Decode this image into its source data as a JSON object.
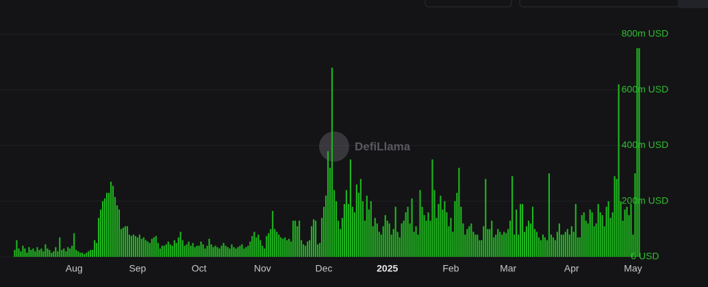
{
  "chart_data": {
    "type": "bar",
    "watermark": "DefiLlama",
    "color": "#1fb51f",
    "grid": true,
    "ylim": [
      0,
      800
    ],
    "yticks": [
      {
        "value": 0,
        "label": "0 USD"
      },
      {
        "value": 200,
        "label": "200m USD"
      },
      {
        "value": 400,
        "label": "400m USD"
      },
      {
        "value": 600,
        "label": "600m USD"
      },
      {
        "value": 800,
        "label": "800m USD"
      }
    ],
    "categories": [
      null,
      null,
      null,
      null,
      null,
      null,
      null,
      null,
      null,
      null,
      null,
      null,
      null,
      null,
      null,
      null,
      null,
      null,
      null,
      null,
      null,
      null,
      null,
      null,
      null,
      null,
      null,
      null,
      null,
      "Aug",
      null,
      null,
      null,
      null,
      null,
      null,
      null,
      null,
      null,
      null,
      null,
      null,
      null,
      null,
      null,
      null,
      null,
      null,
      null,
      null,
      null,
      null,
      null,
      null,
      null,
      null,
      null,
      null,
      null,
      null,
      "Sep",
      null,
      null,
      null,
      null,
      null,
      null,
      null,
      null,
      null,
      null,
      null,
      null,
      null,
      null,
      null,
      null,
      null,
      null,
      null,
      null,
      null,
      null,
      null,
      null,
      null,
      null,
      null,
      null,
      null,
      "Oct",
      null,
      null,
      null,
      null,
      null,
      null,
      null,
      null,
      null,
      null,
      null,
      null,
      null,
      null,
      null,
      null,
      null,
      null,
      null,
      null,
      null,
      null,
      null,
      null,
      null,
      null,
      null,
      null,
      null,
      null,
      "Nov",
      null,
      null,
      null,
      null,
      null,
      null,
      null,
      null,
      null,
      null,
      null,
      null,
      null,
      null,
      null,
      null,
      null,
      null,
      null,
      null,
      null,
      null,
      null,
      null,
      null,
      null,
      null,
      null,
      null,
      "Dec",
      null,
      null,
      null,
      null,
      null,
      null,
      null,
      null,
      null,
      null,
      null,
      null,
      null,
      null,
      null,
      null,
      null,
      null,
      null,
      null,
      null,
      null,
      null,
      null,
      null,
      null,
      null,
      null,
      null,
      null,
      "2025",
      null,
      null,
      null,
      null,
      null,
      null,
      null,
      null,
      null,
      null,
      null,
      null,
      null,
      null,
      null,
      null,
      null,
      null,
      null,
      null,
      null,
      null,
      null,
      null,
      null,
      null,
      null,
      null,
      null,
      null,
      "Feb",
      null,
      null,
      null,
      null,
      null,
      null,
      null,
      null,
      null,
      null,
      null,
      null,
      null,
      null,
      null,
      null,
      null,
      null,
      null,
      null,
      null,
      null,
      null,
      null,
      null,
      null,
      null,
      "Mar",
      null,
      null,
      null,
      null,
      null,
      null,
      null,
      null,
      null,
      null,
      null,
      null,
      null,
      null,
      null,
      null,
      null,
      null,
      null,
      null,
      null,
      null,
      null,
      null,
      null,
      null,
      null,
      null,
      null,
      null,
      "Apr",
      null,
      null,
      null,
      null,
      null,
      null,
      null,
      null,
      null,
      null,
      null,
      null,
      null,
      null,
      null,
      null,
      null,
      null,
      null,
      null,
      null,
      null,
      null,
      null,
      null,
      null,
      null,
      null,
      null,
      "May",
      null,
      null,
      null
    ],
    "values": [
      25,
      60,
      30,
      20,
      40,
      30,
      15,
      35,
      25,
      30,
      20,
      35,
      25,
      30,
      20,
      45,
      30,
      25,
      15,
      20,
      35,
      20,
      70,
      25,
      30,
      20,
      35,
      30,
      40,
      85,
      25,
      20,
      15,
      15,
      10,
      15,
      20,
      25,
      25,
      60,
      50,
      140,
      170,
      200,
      210,
      230,
      230,
      270,
      255,
      215,
      185,
      170,
      100,
      105,
      110,
      110,
      80,
      75,
      80,
      75,
      70,
      80,
      65,
      70,
      60,
      55,
      50,
      65,
      70,
      75,
      50,
      30,
      40,
      40,
      45,
      55,
      45,
      40,
      60,
      50,
      70,
      90,
      60,
      40,
      45,
      55,
      40,
      50,
      35,
      40,
      40,
      55,
      45,
      30,
      40,
      65,
      45,
      35,
      40,
      35,
      30,
      40,
      50,
      40,
      35,
      30,
      45,
      35,
      30,
      35,
      40,
      45,
      30,
      35,
      40,
      55,
      75,
      90,
      70,
      80,
      60,
      40,
      30,
      75,
      85,
      100,
      165,
      100,
      90,
      80,
      70,
      65,
      70,
      60,
      65,
      55,
      130,
      130,
      110,
      130,
      60,
      45,
      40,
      55,
      60,
      110,
      135,
      130,
      45,
      50,
      140,
      180,
      220,
      380,
      320,
      680,
      240,
      200,
      130,
      100,
      140,
      190,
      240,
      190,
      350,
      180,
      160,
      260,
      230,
      280,
      200,
      130,
      220,
      170,
      200,
      110,
      140,
      120,
      90,
      80,
      110,
      150,
      130,
      120,
      80,
      100,
      180,
      90,
      70,
      120,
      130,
      160,
      180,
      120,
      210,
      90,
      110,
      80,
      240,
      180,
      150,
      130,
      160,
      130,
      350,
      240,
      140,
      190,
      220,
      170,
      200,
      160,
      110,
      140,
      90,
      200,
      230,
      320,
      180,
      120,
      80,
      100,
      110,
      120,
      90,
      80,
      80,
      60,
      60,
      110,
      280,
      100,
      100,
      130,
      70,
      80,
      100,
      90,
      80,
      90,
      85,
      100,
      130,
      290,
      80,
      170,
      80,
      190,
      190,
      90,
      110,
      130,
      120,
      180,
      100,
      90,
      70,
      60,
      80,
      70,
      60,
      300,
      80,
      70,
      60,
      90,
      120,
      80,
      80,
      90,
      100,
      80,
      110,
      90,
      190,
      70,
      70,
      150,
      160,
      130,
      120,
      170,
      160,
      110,
      120,
      190,
      160,
      150,
      110,
      180,
      200,
      140,
      160,
      290,
      280,
      620,
      200,
      130,
      170,
      180,
      150,
      190,
      80,
      300,
      750,
      750
    ]
  }
}
